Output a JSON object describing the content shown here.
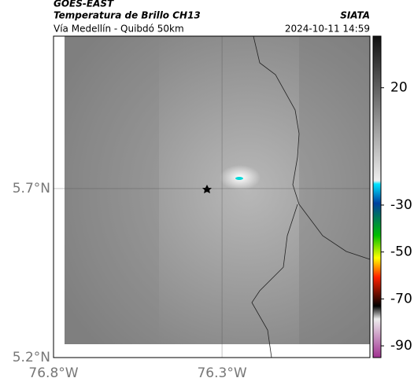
{
  "header": {
    "source": "GOES-EAST",
    "title": "Temperatura de Brillo CH13",
    "agency": "SIATA",
    "subtitle": "Vía Medellín - Quibdó 50km",
    "timestamp": "2024-10-11 14:59"
  },
  "map": {
    "xlim": [
      -76.8,
      -75.861
    ],
    "ylim": [
      5.2,
      6.151
    ],
    "xticks": [
      {
        "value": -76.8,
        "label": "76.8°W"
      },
      {
        "value": -76.3,
        "label": "76.3°W"
      }
    ],
    "yticks": [
      {
        "value": 5.7,
        "label": "5.7°N"
      },
      {
        "value": 5.2,
        "label": "5.2°N"
      }
    ],
    "grid": true
  },
  "colorbar": {
    "lim": [
      42,
      -95
    ],
    "ticks": [
      20,
      -30,
      -50,
      -70,
      -90
    ]
  }
}
